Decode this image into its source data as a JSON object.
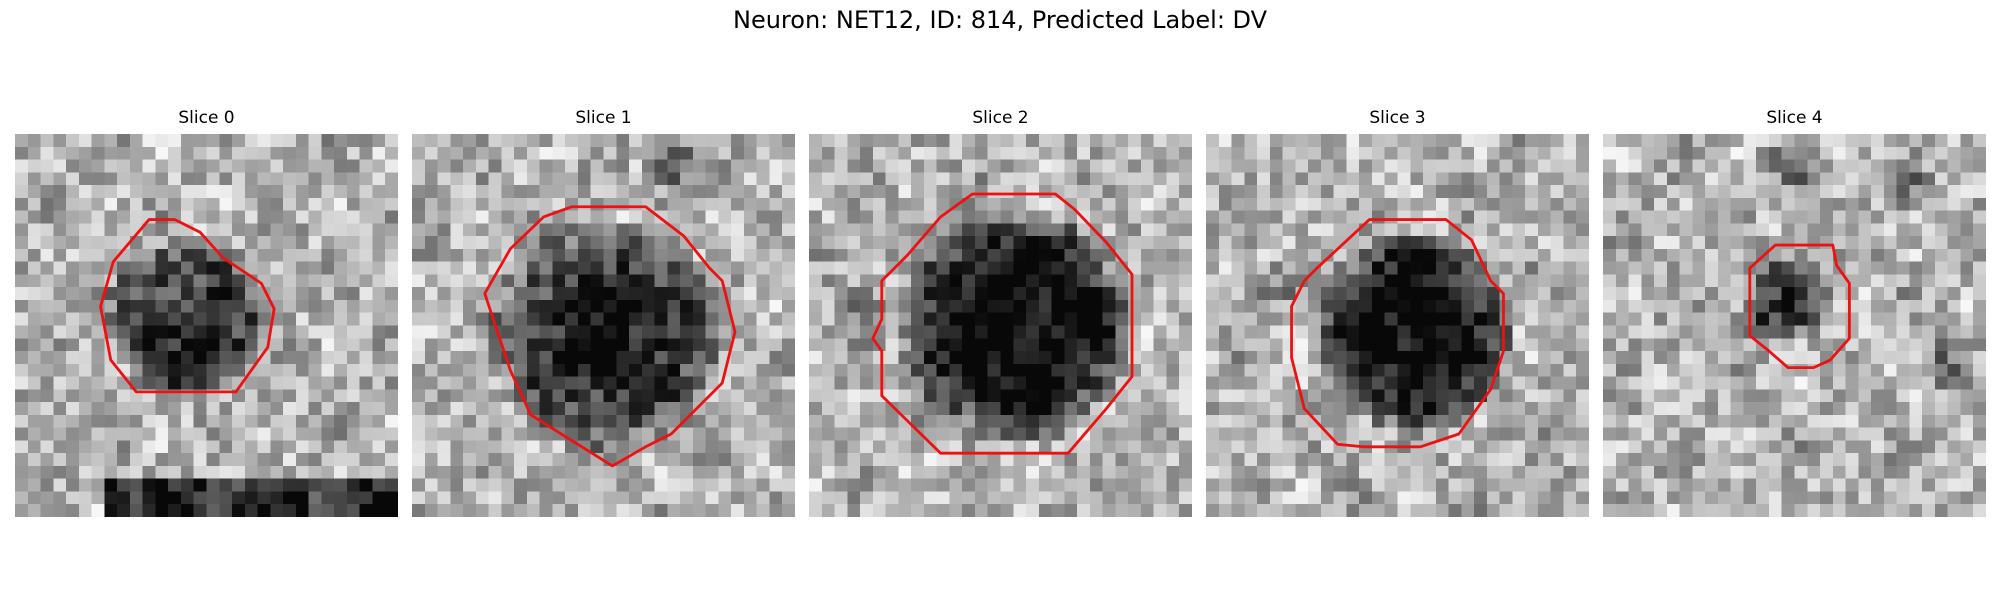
{
  "figure": {
    "title": "Neuron: NET12, ID: 814, Predicted Label: DV",
    "contour_color": "#ee1111",
    "colormap": "gray"
  },
  "panels": [
    {
      "title": "Slice 0"
    },
    {
      "title": "Slice 1"
    },
    {
      "title": "Slice 2"
    },
    {
      "title": "Slice 3"
    },
    {
      "title": "Slice 4"
    }
  ]
}
